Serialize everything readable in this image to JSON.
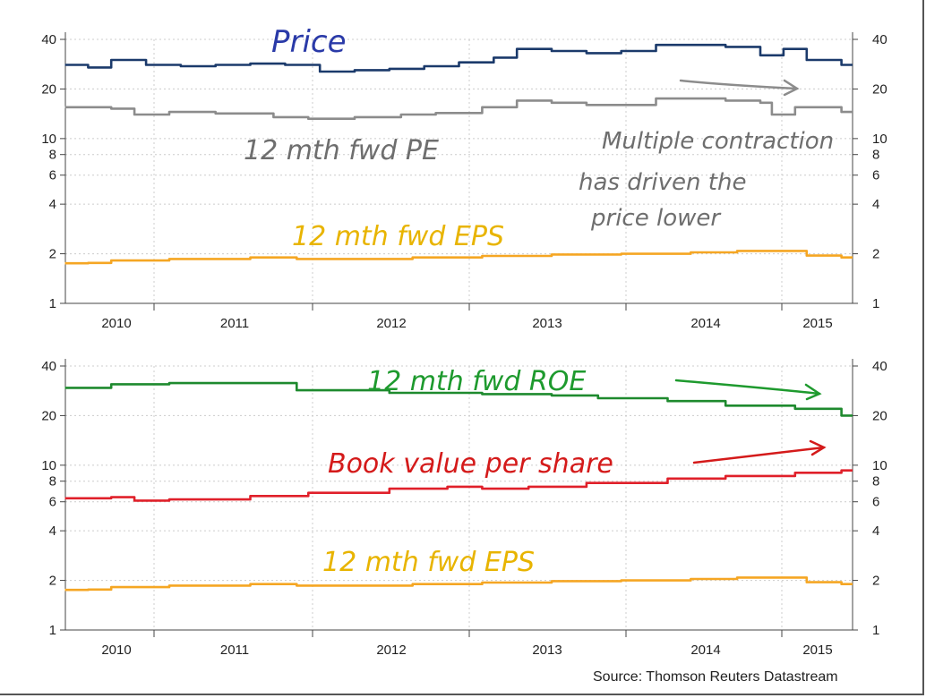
{
  "source": "Source: Thomson Reuters Datastream",
  "chart_data": [
    {
      "type": "line",
      "y_scale": "log",
      "ylim": [
        1,
        40
      ],
      "y_ticks": [
        1,
        2,
        4,
        6,
        8,
        10,
        20,
        40
      ],
      "x_ticks": [
        "2010",
        "2011",
        "2012",
        "2013",
        "2014",
        "2015"
      ],
      "grid": true,
      "series": [
        {
          "name": "Price",
          "color": "#1b3a6b",
          "points": [
            [
              "2009-09",
              28
            ],
            [
              "2009-11",
              27
            ],
            [
              "2010-01",
              30
            ],
            [
              "2010-04",
              28
            ],
            [
              "2010-07",
              27.5
            ],
            [
              "2010-10",
              28
            ],
            [
              "2011-01",
              28.5
            ],
            [
              "2011-04",
              28
            ],
            [
              "2011-07",
              25.5
            ],
            [
              "2011-10",
              26
            ],
            [
              "2012-01",
              26.5
            ],
            [
              "2012-04",
              27.5
            ],
            [
              "2012-07",
              29
            ],
            [
              "2012-10",
              31
            ],
            [
              "2012-12",
              35
            ],
            [
              "2013-03",
              34
            ],
            [
              "2013-06",
              33
            ],
            [
              "2013-09",
              34
            ],
            [
              "2013-12",
              37
            ],
            [
              "2014-03",
              37
            ],
            [
              "2014-06",
              36
            ],
            [
              "2014-09",
              32
            ],
            [
              "2014-11",
              35
            ],
            [
              "2015-01",
              30
            ],
            [
              "2015-04",
              28
            ]
          ]
        },
        {
          "name": "12 mth fwd PE",
          "color": "#8c8c8c",
          "points": [
            [
              "2009-09",
              15.5
            ],
            [
              "2010-01",
              15.2
            ],
            [
              "2010-03",
              14
            ],
            [
              "2010-06",
              14.5
            ],
            [
              "2010-10",
              14.2
            ],
            [
              "2011-03",
              13.5
            ],
            [
              "2011-06",
              13.2
            ],
            [
              "2011-10",
              13.5
            ],
            [
              "2012-02",
              14
            ],
            [
              "2012-05",
              14.3
            ],
            [
              "2012-09",
              15.5
            ],
            [
              "2012-12",
              17
            ],
            [
              "2013-03",
              16.5
            ],
            [
              "2013-06",
              16
            ],
            [
              "2013-09",
              16
            ],
            [
              "2013-12",
              17.5
            ],
            [
              "2014-03",
              17.5
            ],
            [
              "2014-06",
              17
            ],
            [
              "2014-09",
              16.5
            ],
            [
              "2014-10",
              14
            ],
            [
              "2014-12",
              15.5
            ],
            [
              "2015-04",
              14.5
            ]
          ]
        },
        {
          "name": "12 mth fwd EPS",
          "color": "#f5a623",
          "points": [
            [
              "2009-09",
              1.75
            ],
            [
              "2009-11",
              1.76
            ],
            [
              "2010-01",
              1.82
            ],
            [
              "2010-06",
              1.86
            ],
            [
              "2011-01",
              1.9
            ],
            [
              "2011-05",
              1.86
            ],
            [
              "2011-10",
              1.86
            ],
            [
              "2012-03",
              1.9
            ],
            [
              "2012-09",
              1.94
            ],
            [
              "2013-03",
              1.98
            ],
            [
              "2013-09",
              2.0
            ],
            [
              "2014-03",
              2.04
            ],
            [
              "2014-07",
              2.08
            ],
            [
              "2014-12",
              2.08
            ],
            [
              "2015-01",
              1.95
            ],
            [
              "2015-04",
              1.9
            ]
          ]
        }
      ]
    },
    {
      "type": "line",
      "y_scale": "log",
      "ylim": [
        1,
        40
      ],
      "y_ticks": [
        1,
        2,
        4,
        6,
        8,
        10,
        20,
        40
      ],
      "x_ticks": [
        "2010",
        "2011",
        "2012",
        "2013",
        "2014",
        "2015"
      ],
      "grid": true,
      "series": [
        {
          "name": "12 mth fwd ROE",
          "color": "#1e8a2e",
          "points": [
            [
              "2009-09",
              29.5
            ],
            [
              "2009-12",
              29.5
            ],
            [
              "2010-01",
              31
            ],
            [
              "2010-06",
              31.5
            ],
            [
              "2011-03",
              31.5
            ],
            [
              "2011-05",
              28.5
            ],
            [
              "2011-10",
              28.5
            ],
            [
              "2012-01",
              27.5
            ],
            [
              "2012-09",
              27
            ],
            [
              "2013-03",
              26.5
            ],
            [
              "2013-07",
              25.5
            ],
            [
              "2014-01",
              24.5
            ],
            [
              "2014-06",
              23
            ],
            [
              "2014-12",
              22
            ],
            [
              "2015-04",
              20
            ]
          ]
        },
        {
          "name": "Book value per share",
          "color": "#e0202a",
          "points": [
            [
              "2009-09",
              6.3
            ],
            [
              "2010-01",
              6.4
            ],
            [
              "2010-03",
              6.1
            ],
            [
              "2010-06",
              6.2
            ],
            [
              "2011-01",
              6.5
            ],
            [
              "2011-06",
              6.8
            ],
            [
              "2012-01",
              7.2
            ],
            [
              "2012-06",
              7.4
            ],
            [
              "2012-09",
              7.2
            ],
            [
              "2013-01",
              7.4
            ],
            [
              "2013-06",
              7.8
            ],
            [
              "2014-01",
              8.3
            ],
            [
              "2014-06",
              8.6
            ],
            [
              "2014-12",
              9.0
            ],
            [
              "2015-04",
              9.3
            ]
          ]
        },
        {
          "name": "12 mth fwd EPS",
          "color": "#f5a623",
          "points": [
            [
              "2009-09",
              1.75
            ],
            [
              "2009-11",
              1.76
            ],
            [
              "2010-01",
              1.82
            ],
            [
              "2010-06",
              1.86
            ],
            [
              "2011-01",
              1.9
            ],
            [
              "2011-05",
              1.86
            ],
            [
              "2011-10",
              1.86
            ],
            [
              "2012-03",
              1.9
            ],
            [
              "2012-09",
              1.94
            ],
            [
              "2013-03",
              1.98
            ],
            [
              "2013-09",
              2.0
            ],
            [
              "2014-03",
              2.04
            ],
            [
              "2014-07",
              2.08
            ],
            [
              "2014-12",
              2.08
            ],
            [
              "2015-01",
              1.95
            ],
            [
              "2015-04",
              1.9
            ]
          ]
        }
      ]
    }
  ],
  "annotations": {
    "top": {
      "price": "Price",
      "pe": "12 mth fwd PE",
      "eps": "12 mth fwd EPS",
      "note": [
        "Multiple contraction",
        "has driven the",
        "price lower"
      ],
      "arrow_color": "#8c8c8c"
    },
    "bottom": {
      "roe": "12 mth fwd ROE",
      "bvps": "Book value per share",
      "eps": "12 mth fwd EPS"
    },
    "colors": {
      "price": "#2a3aa8",
      "pe": "#6e6e6e",
      "eps": "#e8b400",
      "roe": "#1e9a2e",
      "bvps": "#d41a1a"
    }
  }
}
